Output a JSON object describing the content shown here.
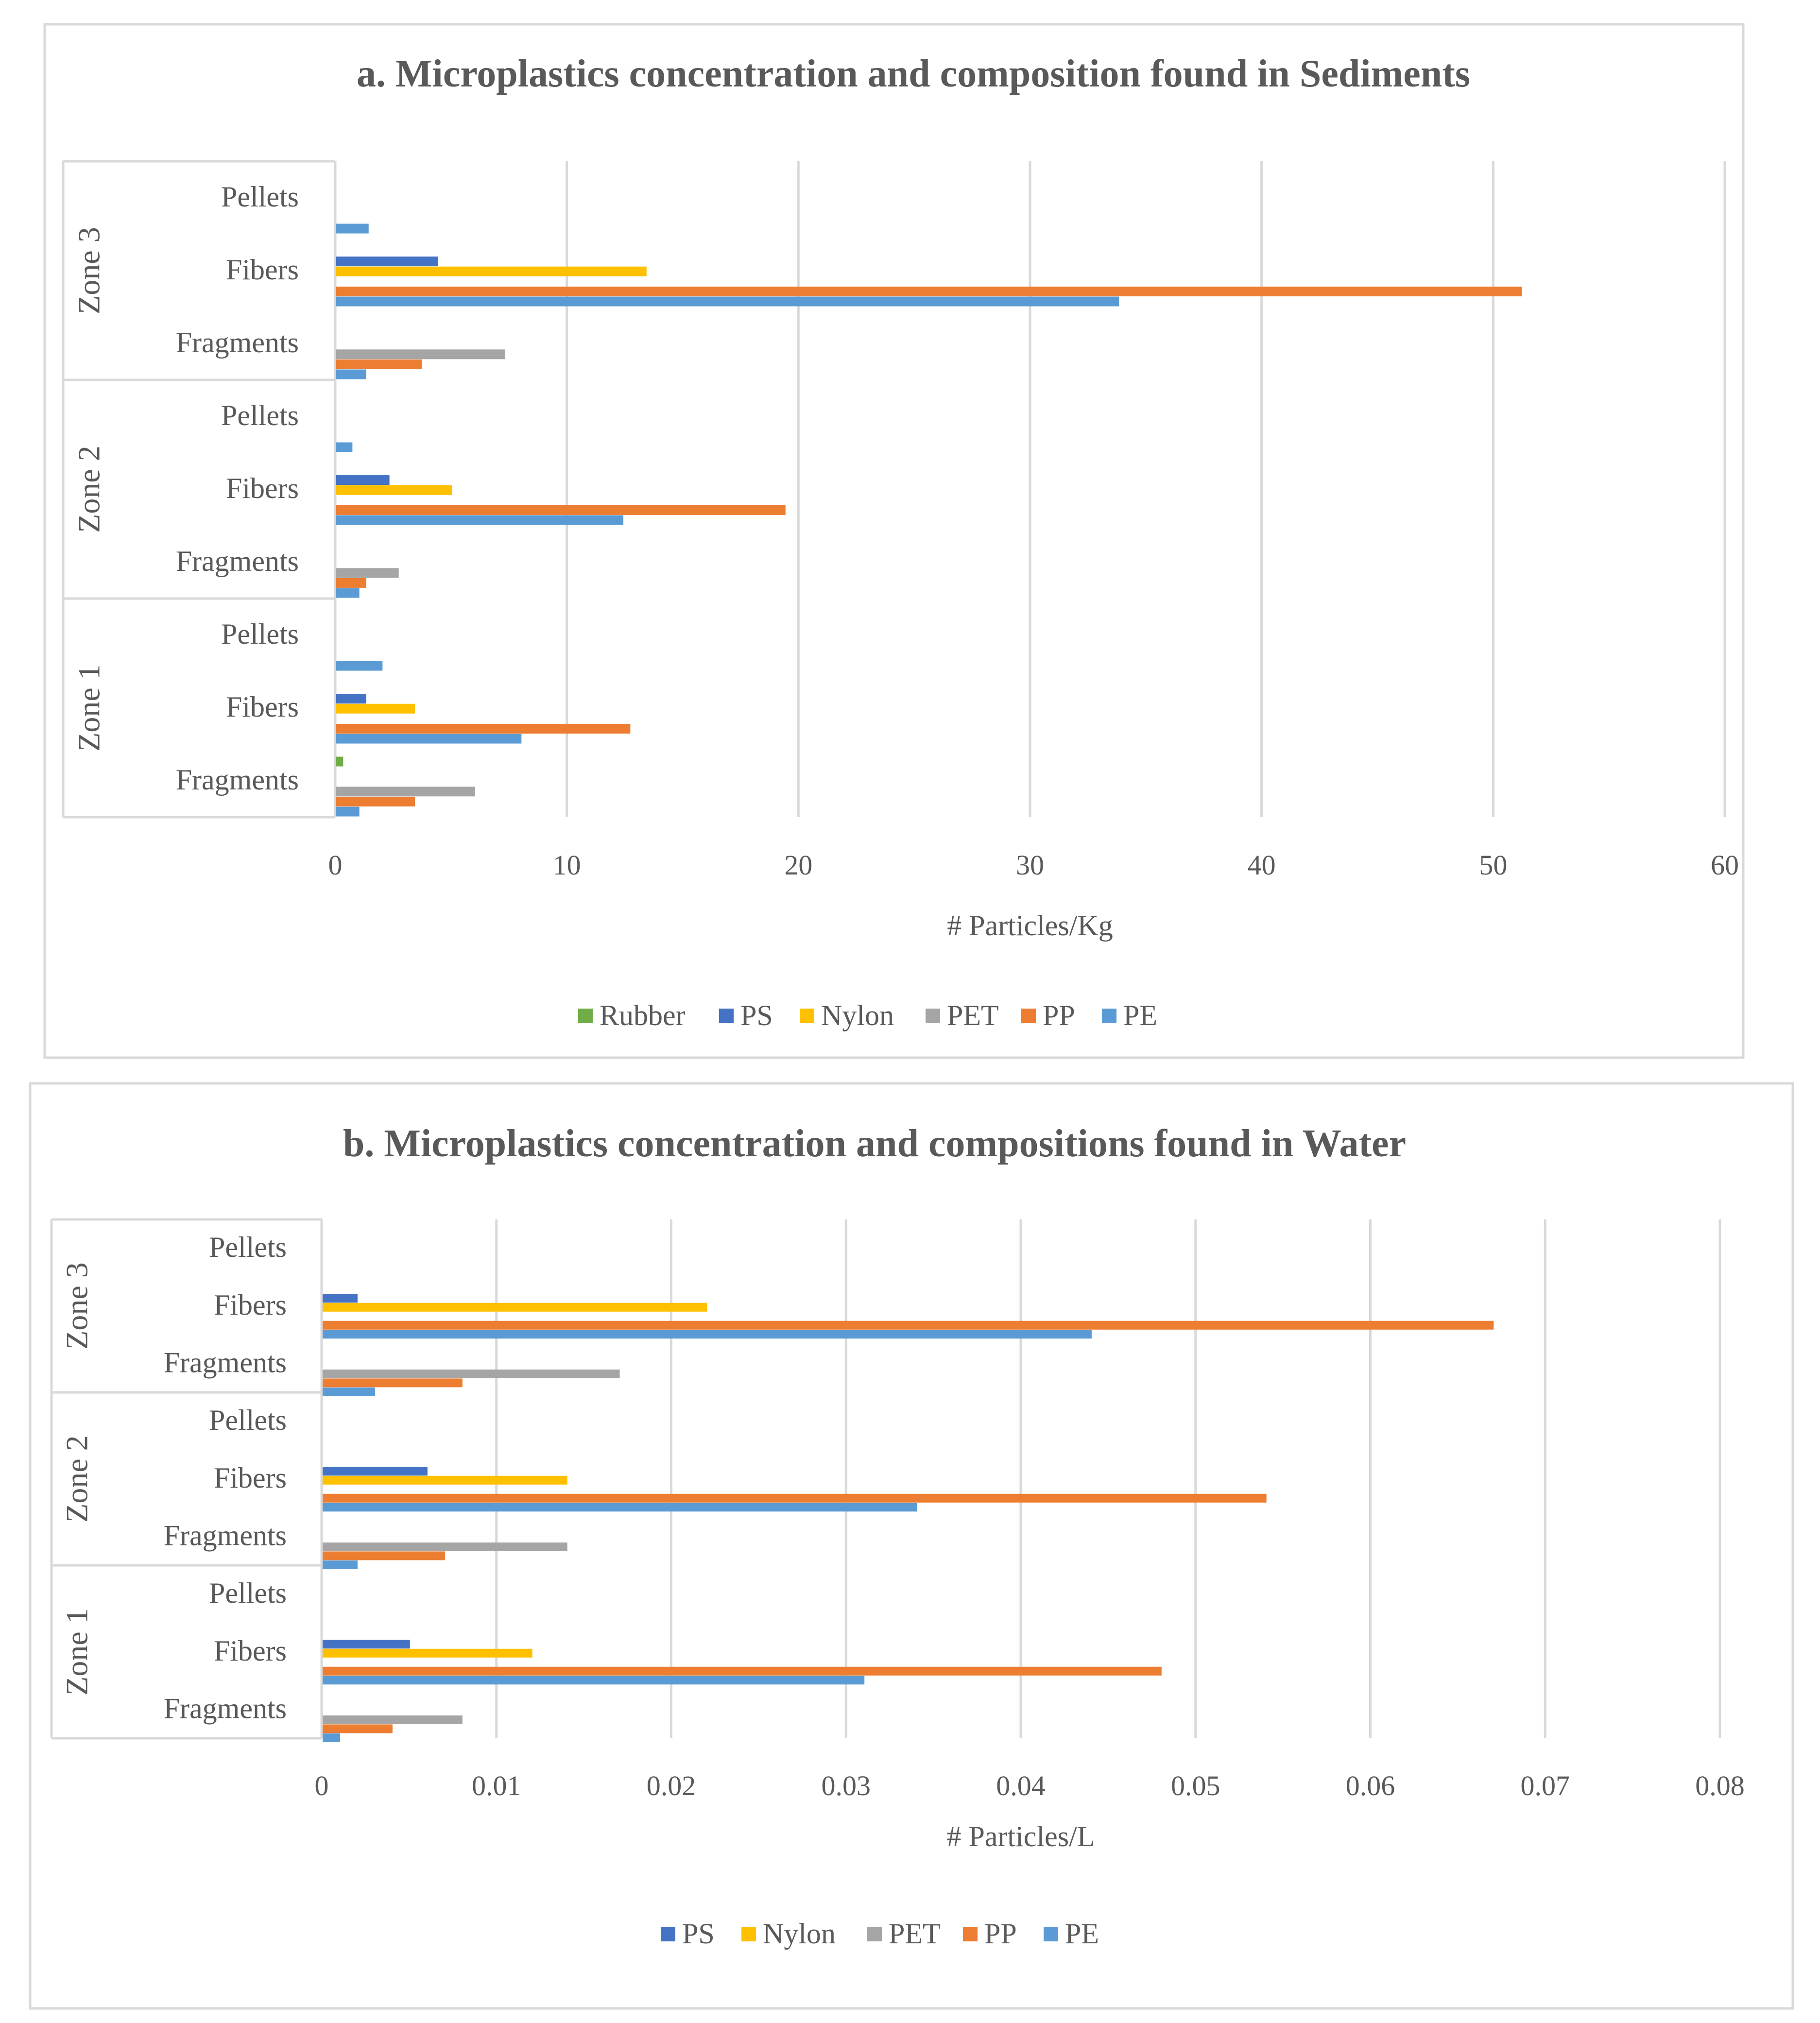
{
  "chart_data": [
    {
      "type": "bar",
      "orientation": "horizontal",
      "title": "a. Microplastics concentration and composition found in Sediments",
      "xlabel": "# Particles/Kg",
      "ylabel": "",
      "xlim": [
        0,
        60
      ],
      "xticks": [
        0,
        10,
        20,
        30,
        40,
        50,
        60
      ],
      "grid": true,
      "legend_position": "bottom",
      "groups": [
        {
          "zone": "Zone 1",
          "categories": [
            {
              "name": "Fragments",
              "values": {
                "Rubber": 0.3,
                "PET": 6.0,
                "PP": 3.4,
                "PE": 1.0
              }
            },
            {
              "name": "Fibers",
              "values": {
                "PS": 1.3,
                "Nylon": 3.4,
                "PP": 12.7,
                "PE": 8.0
              }
            },
            {
              "name": "Pellets",
              "values": {
                "PE": 2.0
              }
            }
          ]
        },
        {
          "zone": "Zone 2",
          "categories": [
            {
              "name": "Fragments",
              "values": {
                "PET": 2.7,
                "PP": 1.3,
                "PE": 1.0
              }
            },
            {
              "name": "Fibers",
              "values": {
                "PS": 2.3,
                "Nylon": 5.0,
                "PP": 19.4,
                "PE": 12.4
              }
            },
            {
              "name": "Pellets",
              "values": {
                "PE": 0.7
              }
            }
          ]
        },
        {
          "zone": "Zone 3",
          "categories": [
            {
              "name": "Fragments",
              "values": {
                "PET": 7.3,
                "PP": 3.7,
                "PE": 1.3
              }
            },
            {
              "name": "Fibers",
              "values": {
                "PS": 4.4,
                "Nylon": 13.4,
                "PP": 51.2,
                "PE": 33.8
              }
            },
            {
              "name": "Pellets",
              "values": {
                "PE": 1.4
              }
            }
          ]
        }
      ],
      "legend": [
        {
          "name": "Rubber",
          "color": "#70AD47"
        },
        {
          "name": "PS",
          "color": "#4472C4"
        },
        {
          "name": "Nylon",
          "color": "#FFC000"
        },
        {
          "name": "PET",
          "color": "#A5A5A5"
        },
        {
          "name": "PP",
          "color": "#ED7D31"
        },
        {
          "name": "PE",
          "color": "#5B9BD5"
        }
      ]
    },
    {
      "type": "bar",
      "orientation": "horizontal",
      "title": "b. Microplastics concentration and compositions found in Water",
      "xlabel": "# Particles/L",
      "ylabel": "",
      "xlim": [
        0,
        0.08
      ],
      "xticks": [
        0,
        0.01,
        0.02,
        0.03,
        0.04,
        0.05,
        0.06,
        0.07,
        0.08
      ],
      "grid": true,
      "legend_position": "bottom",
      "groups": [
        {
          "zone": "Zone 1",
          "categories": [
            {
              "name": "Fragments",
              "values": {
                "PET": 0.008,
                "PP": 0.004,
                "PE": 0.001
              }
            },
            {
              "name": "Fibers",
              "values": {
                "PS": 0.005,
                "Nylon": 0.012,
                "PP": 0.048,
                "PE": 0.031
              }
            },
            {
              "name": "Pellets",
              "values": {}
            }
          ]
        },
        {
          "zone": "Zone 2",
          "categories": [
            {
              "name": "Fragments",
              "values": {
                "PET": 0.014,
                "PP": 0.007,
                "PE": 0.002
              }
            },
            {
              "name": "Fibers",
              "values": {
                "PS": 0.006,
                "Nylon": 0.014,
                "PP": 0.054,
                "PE": 0.034
              }
            },
            {
              "name": "Pellets",
              "values": {}
            }
          ]
        },
        {
          "zone": "Zone 3",
          "categories": [
            {
              "name": "Fragments",
              "values": {
                "PET": 0.017,
                "PP": 0.008,
                "PE": 0.003
              }
            },
            {
              "name": "Fibers",
              "values": {
                "PS": 0.002,
                "Nylon": 0.022,
                "PP": 0.067,
                "PE": 0.044
              }
            },
            {
              "name": "Pellets",
              "values": {}
            }
          ]
        }
      ],
      "legend": [
        {
          "name": "PS",
          "color": "#4472C4"
        },
        {
          "name": "Nylon",
          "color": "#FFC000"
        },
        {
          "name": "PET",
          "color": "#A5A5A5"
        },
        {
          "name": "PP",
          "color": "#ED7D31"
        },
        {
          "name": "PE",
          "color": "#5B9BD5"
        }
      ]
    }
  ]
}
